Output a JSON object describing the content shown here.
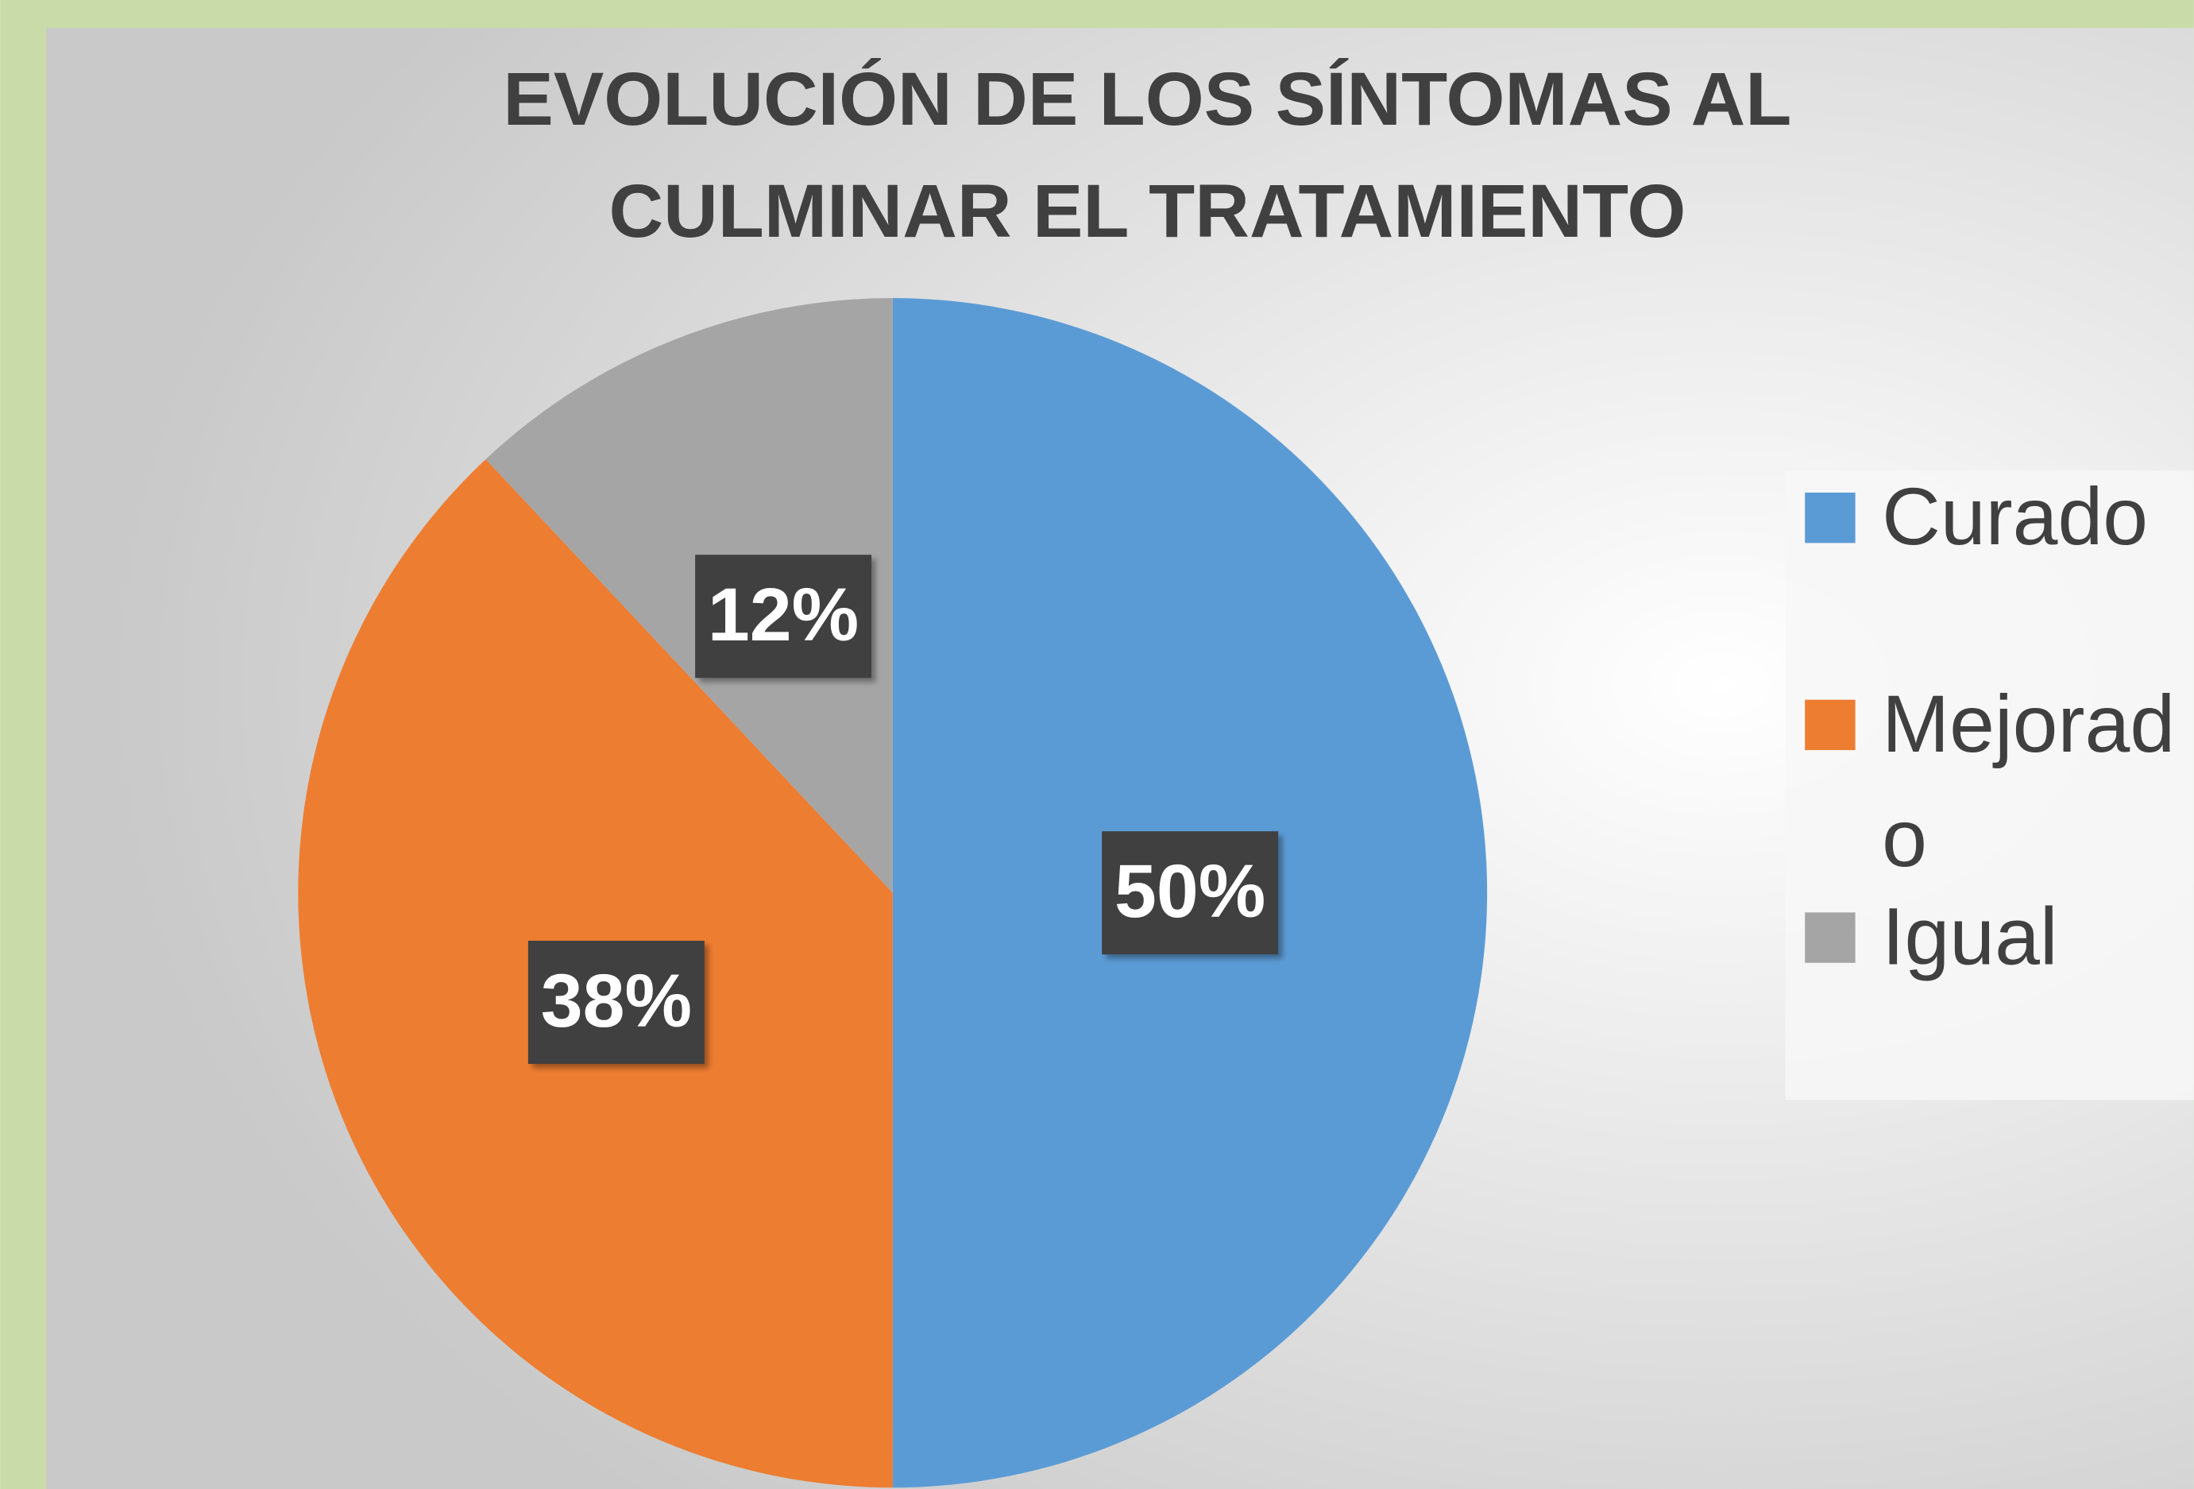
{
  "chart_data": {
    "type": "pie",
    "title": "EVOLUCIÓN DE LOS SÍNTOMAS AL CULMINAR EL TRATAMIENTO",
    "categories": [
      "Curado",
      "Mejorado",
      "Igual"
    ],
    "values": [
      50,
      38,
      12
    ],
    "value_labels": [
      "50%",
      "38%",
      "12%"
    ],
    "colors": [
      "#5b9bd5",
      "#ed7d31",
      "#a5a5a5"
    ],
    "legend": "right"
  }
}
